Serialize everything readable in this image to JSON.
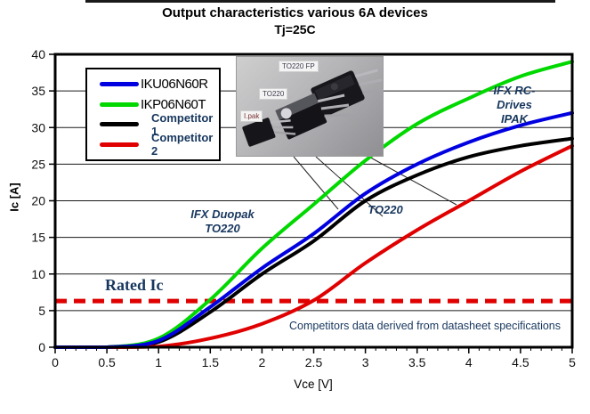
{
  "title": {
    "line1": "Output characteristics various 6A devices",
    "line2": "Tj=25C"
  },
  "colors": {
    "navy_text": "#17375E",
    "blue_series": "#0000E0",
    "green_series": "#00D800",
    "black_series": "#000000",
    "red_series": "#E00000",
    "rated_line": "#E00000",
    "grid": "#1a1a1a"
  },
  "legend": {
    "items": [
      {
        "label": "IKU06N60R",
        "color": "#0000E0"
      },
      {
        "label": "IKP06N60T",
        "color": "#00D800"
      },
      {
        "label": "Competitor 1",
        "color": "#000000"
      },
      {
        "label": "Competitor 2",
        "color": "#E00000"
      }
    ]
  },
  "photo": {
    "labels": [
      "TO220 FP",
      "TO220",
      "I.pak"
    ]
  },
  "annotations": {
    "duopak_line1": "IFX Duopak",
    "duopak_line2": "TO220",
    "to220": "TO220",
    "ipak_line1": "IFX RC-",
    "ipak_line2": "Drives",
    "ipak_line3": "IPAK",
    "rated_label": "Rated Ic",
    "footnote": "Competitors data derived from datasheet specifications"
  },
  "chart_data": {
    "type": "line",
    "title": "Output characteristics various 6A devices, Tj=25C",
    "xlabel": "Vce [V]",
    "ylabel": "Ic [A]",
    "xlim": [
      0,
      5
    ],
    "ylim": [
      0,
      40
    ],
    "xticks": [
      0,
      0.5,
      1,
      1.5,
      2,
      2.5,
      3,
      3.5,
      4,
      4.5,
      5
    ],
    "yticks": [
      0,
      5,
      10,
      15,
      20,
      25,
      30,
      35,
      40
    ],
    "grid": "horizontal",
    "legend_position": "top-left-inside",
    "rated_ic": 6.3,
    "x": [
      0,
      0.5,
      1,
      1.5,
      2,
      2.5,
      3,
      3.5,
      4,
      4.5,
      5
    ],
    "series": [
      {
        "name": "IKU06N60R",
        "color": "#0000E0",
        "values": [
          0,
          0,
          0.9,
          5.5,
          10.8,
          15.5,
          21,
          25,
          28,
          30.3,
          32
        ]
      },
      {
        "name": "IKP06N60T",
        "color": "#00D800",
        "values": [
          0,
          0,
          1.2,
          6.5,
          13.5,
          19.5,
          25.5,
          30.5,
          34,
          37,
          39
        ]
      },
      {
        "name": "Competitor 1",
        "color": "#000000",
        "values": [
          0,
          0,
          0.7,
          4.8,
          10,
          14.5,
          20,
          23.5,
          26,
          27.5,
          28.5
        ]
      },
      {
        "name": "Competitor 2",
        "color": "#E00000",
        "values": [
          0,
          0,
          0.1,
          1.2,
          3.2,
          6.4,
          11.5,
          16,
          20,
          24,
          27.5
        ]
      }
    ]
  }
}
